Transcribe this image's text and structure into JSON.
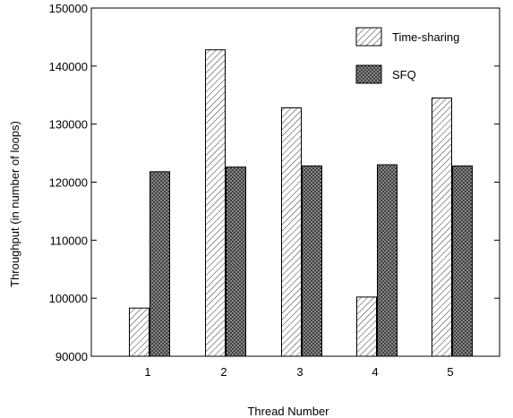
{
  "chart_data": {
    "type": "bar",
    "title": "",
    "xlabel": "Thread Number",
    "ylabel": "Throughput (in number of loops)",
    "categories": [
      "1",
      "2",
      "3",
      "4",
      "5"
    ],
    "series": [
      {
        "name": "Time-sharing",
        "values": [
          98300,
          142800,
          132800,
          100200,
          134500
        ],
        "pattern": "diagonal-hatch"
      },
      {
        "name": "SFQ",
        "values": [
          121800,
          122600,
          122800,
          123000,
          122800
        ],
        "pattern": "dense-crosshatch"
      }
    ],
    "ylim": [
      90000,
      150000
    ],
    "yticks": [
      90000,
      100000,
      110000,
      120000,
      130000,
      140000,
      150000
    ],
    "grid": false,
    "legend": {
      "position": "top-right"
    }
  }
}
